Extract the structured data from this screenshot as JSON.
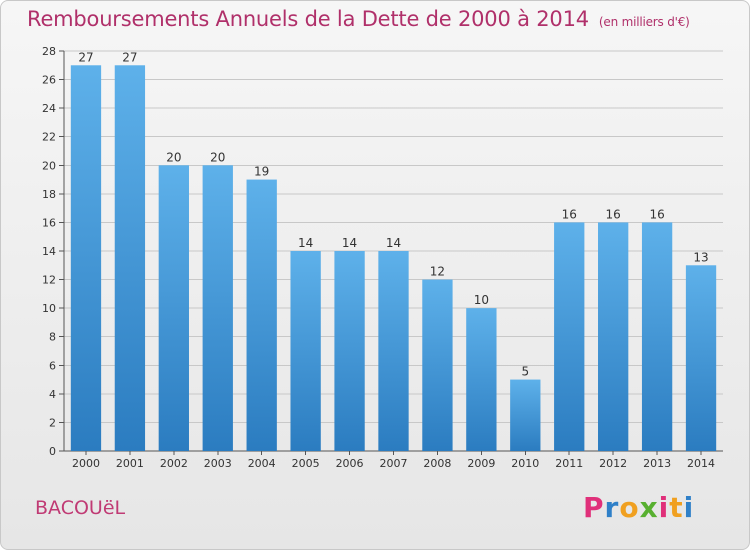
{
  "title": "Remboursements Annuels de la Dette de 2000 à 2014",
  "unit": "(en milliers d'€)",
  "commune": "BACOUëL",
  "logo": {
    "text": "Proxiti",
    "letter_colors": [
      "#e0307a",
      "#2f80c8",
      "#f0a020",
      "#58b030",
      "#e0307a",
      "#f0a020",
      "#2f80c8"
    ]
  },
  "colors": {
    "bar_top": "#5eb1ea",
    "bar_bottom": "#2b7cc0",
    "title": "#b0306a",
    "grid": "#c8c8c8"
  },
  "chart_data": {
    "type": "bar",
    "title": "Remboursements Annuels de la Dette de 2000 à 2014",
    "xlabel": "",
    "ylabel": "",
    "categories": [
      "2000",
      "2001",
      "2002",
      "2003",
      "2004",
      "2005",
      "2006",
      "2007",
      "2008",
      "2009",
      "2010",
      "2011",
      "2012",
      "2013",
      "2014"
    ],
    "values": [
      27,
      27,
      20,
      20,
      19,
      14,
      14,
      14,
      12,
      10,
      5,
      16,
      16,
      16,
      13
    ],
    "ylim": [
      0,
      28
    ],
    "yticks": [
      0,
      2,
      4,
      6,
      8,
      10,
      12,
      14,
      16,
      18,
      20,
      22,
      24,
      26,
      28
    ],
    "grid": "horizontal"
  }
}
